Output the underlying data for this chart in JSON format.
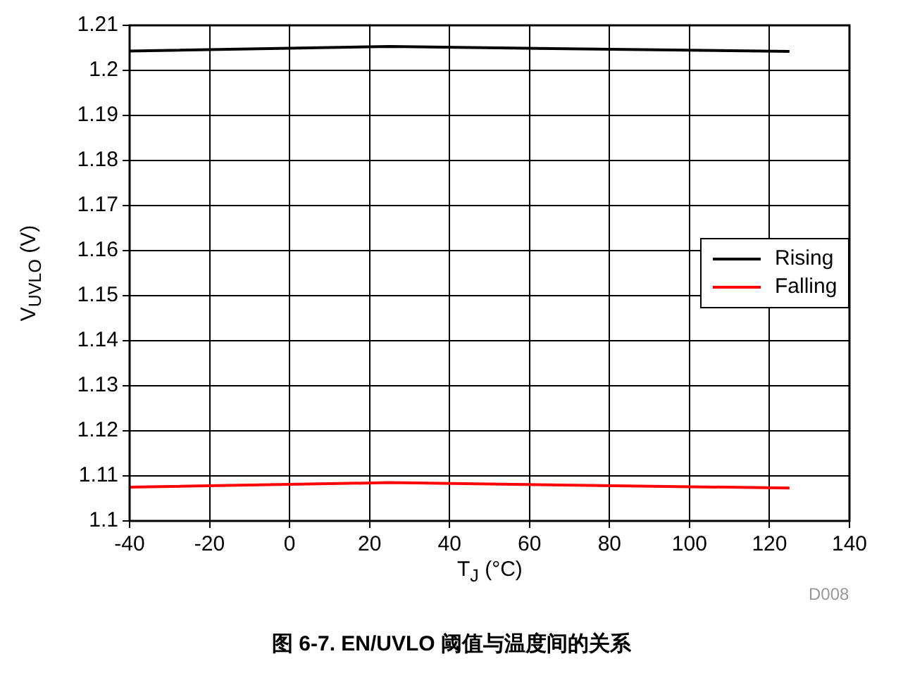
{
  "chart_data": {
    "type": "line",
    "title": "图 6-7. EN/UVLO 阈值与温度间的关系",
    "xlabel": "T$_{J}$ (°C)",
    "ylabel": "V$_{UVLO}$ (V)",
    "x": [
      -40,
      25,
      125
    ],
    "series": [
      {
        "name": "Rising",
        "color": "#000000",
        "values": [
          1.2043,
          1.2053,
          1.2042
        ]
      },
      {
        "name": "Falling",
        "color": "#ff0000",
        "values": [
          1.1075,
          1.1085,
          1.1073
        ]
      }
    ],
    "xlim": [
      -40,
      140
    ],
    "xticks": [
      -40,
      -20,
      0,
      20,
      40,
      60,
      80,
      100,
      120,
      140
    ],
    "ylim": [
      1.1,
      1.21
    ],
    "yticks": [
      1.1,
      1.11,
      1.12,
      1.13,
      1.14,
      1.15,
      1.16,
      1.17,
      1.18,
      1.19,
      1.2,
      1.21
    ],
    "grid": true,
    "legend": "right",
    "marker": "none",
    "line_style": "solid",
    "annotations": [
      "D008"
    ]
  }
}
